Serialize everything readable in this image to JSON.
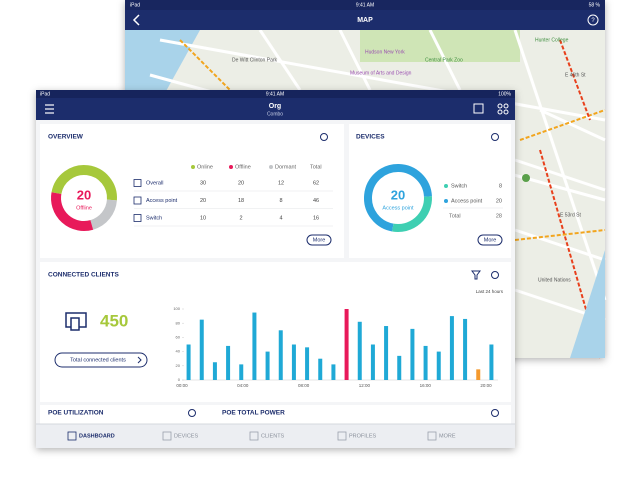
{
  "map_screen": {
    "status": {
      "device": "iPad",
      "time": "9:41 AM",
      "battery": "58 %"
    },
    "title": "MAP",
    "labels": [
      "De Witt Clinton Park",
      "Hudson New York",
      "Museum of Arts and Design",
      "Central Park Zoo",
      "Hunter College",
      "E 46th St",
      "E 53rd St",
      "United Nations"
    ]
  },
  "status": {
    "device": "iPad",
    "time": "9:41 AM",
    "battery": "100%"
  },
  "header": {
    "title": "Org",
    "subtitle": "Combo"
  },
  "overview": {
    "title": "OVERVIEW",
    "columns": [
      {
        "label": "Online",
        "color": "#a6c83b"
      },
      {
        "label": "Offline",
        "color": "#e8195a"
      },
      {
        "label": "Dormant",
        "color": "#c4c6c9"
      },
      {
        "label": "Total"
      }
    ],
    "rows": [
      [
        "Overall",
        30,
        20,
        12,
        62
      ],
      [
        "Access point",
        20,
        18,
        8,
        46
      ],
      [
        "Switch",
        10,
        2,
        4,
        16
      ]
    ],
    "more": "More"
  },
  "devices": {
    "title": "DEVICES",
    "items": [
      {
        "label": "Switch",
        "value": 8,
        "color": "#3ecfb2"
      },
      {
        "label": "Access point",
        "value": 20,
        "color": "#2ea3dd"
      }
    ],
    "total_label": "Total",
    "total": 28,
    "more": "More"
  },
  "clients": {
    "title": "CONNECTED CLIENTS",
    "count": 450,
    "button": "Total connected clients",
    "range": "Last 24 hours",
    "chart": {
      "type": "bar",
      "values": [
        50,
        85,
        25,
        48,
        22,
        95,
        40,
        70,
        50,
        46,
        30,
        22,
        100,
        82,
        50,
        76,
        34,
        72,
        48,
        40,
        90,
        86,
        15,
        50
      ],
      "colors": [
        "#1fa9d6",
        "#1fa9d6",
        "#1fa9d6",
        "#1fa9d6",
        "#1fa9d6",
        "#1fa9d6",
        "#1fa9d6",
        "#1fa9d6",
        "#1fa9d6",
        "#1fa9d6",
        "#1fa9d6",
        "#1fa9d6",
        "#e8195a",
        "#1fa9d6",
        "#1fa9d6",
        "#1fa9d6",
        "#1fa9d6",
        "#1fa9d6",
        "#1fa9d6",
        "#1fa9d6",
        "#1fa9d6",
        "#1fa9d6",
        "#f59a2e",
        "#1fa9d6"
      ],
      "ylim": [
        0,
        100
      ],
      "yticks": [
        0,
        20,
        40,
        60,
        80,
        100
      ],
      "xlabels": [
        "00:00",
        "04:00",
        "08:00",
        "12:00",
        "16:00",
        "20:00"
      ]
    }
  },
  "poe": {
    "utilization": "POE UTILIZATION",
    "power": "POE TOTAL POWER"
  },
  "tabs": [
    "DASHBOARD",
    "DEVICES",
    "CLIENTS",
    "PROFILES",
    "MORE"
  ]
}
